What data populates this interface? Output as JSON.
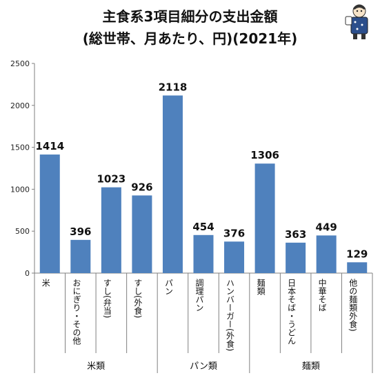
{
  "title": {
    "line1": "主食系3項目細分の支出金額",
    "line2": "(総世帯、月あたり、円)(2021年)"
  },
  "chart_data": {
    "type": "bar",
    "title": "主食系3項目細分の支出金額 (総世帯、月あたり、円)(2021年)",
    "categories": [
      "米",
      "おにぎり・その他",
      "すし(弁当)",
      "すし(外食)",
      "パン",
      "調理パン",
      "ハンバーガー(外食)",
      "麺類",
      "日本そば・うどん",
      "中華そば",
      "他の麺類外食)"
    ],
    "values": [
      1414,
      396,
      1023,
      926,
      2118,
      454,
      376,
      1306,
      363,
      449,
      129
    ],
    "value_labels": [
      "1414",
      "396",
      "1023",
      "926",
      "2118",
      "454",
      "376",
      "1306",
      "363",
      "449",
      "129"
    ],
    "yticks": [
      "0",
      "500",
      "1000",
      "1500",
      "2000",
      "2500"
    ],
    "ylim": [
      0,
      2500
    ],
    "groups": [
      {
        "name": "米類",
        "start": 0,
        "count": 4
      },
      {
        "name": "パン類",
        "start": 4,
        "count": 3
      },
      {
        "name": "麺類",
        "start": 7,
        "count": 4
      }
    ],
    "bar_color": "#4f81bd",
    "grid": false,
    "legend": "none"
  },
  "mascot": {
    "icon": "mascot-character-icon"
  }
}
